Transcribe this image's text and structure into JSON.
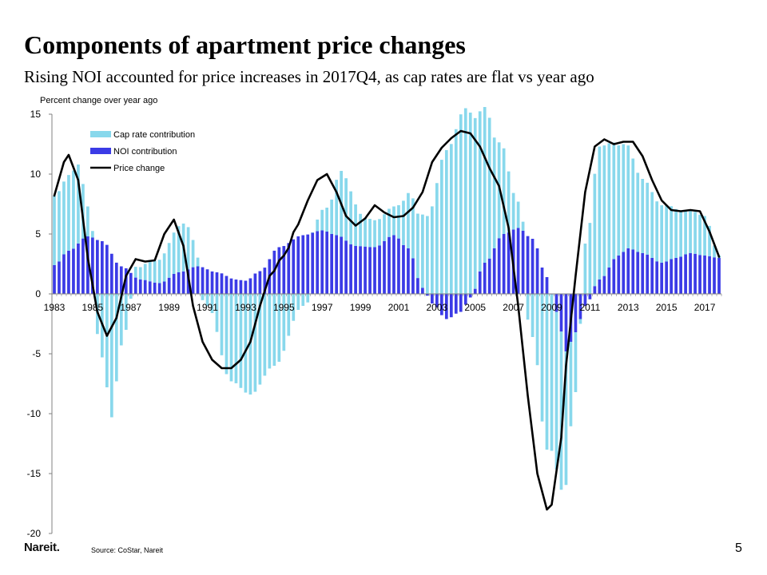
{
  "title": "Components of apartment price changes",
  "subtitle": "Rising NOI accounted for price increases in 2017Q4, as cap rates are flat vs year ago",
  "footer": {
    "logo": "Nareit.",
    "source": "Source: CoStar, Nareit",
    "page": "5"
  },
  "colors": {
    "cap_rate": "#88d8ec",
    "noi": "#3b3be6",
    "price": "#000000",
    "axis": "#808080"
  },
  "chart_data": {
    "type": "bar",
    "ylabel": "Percent change over year ago",
    "ylim": [
      -20,
      15
    ],
    "yticks": [
      15,
      10,
      5,
      0,
      -5,
      -10,
      -15,
      -20
    ],
    "xticks": [
      "1983",
      "1985",
      "1987",
      "1989",
      "1991",
      "1993",
      "1995",
      "1997",
      "1999",
      "2001",
      "2003",
      "2005",
      "2007",
      "2009",
      "2011",
      "2013",
      "2015",
      "2017"
    ],
    "frequency": "quarterly",
    "period_start": "1983Q1",
    "period_end": "2017Q4",
    "legend_position": "top-left",
    "series": [
      {
        "name": "Cap rate contribution",
        "kind": "bar-stacked",
        "anchors": [
          [
            "1983Q1",
            5.8
          ],
          [
            "1984Q2",
            6.6
          ],
          [
            "1984Q4",
            2.5
          ],
          [
            "1985Q3",
            -5.3
          ],
          [
            "1986Q1",
            -10.3
          ],
          [
            "1986Q3",
            -4.3
          ],
          [
            "1987Q2",
            0.9
          ],
          [
            "1988Q2",
            1.8
          ],
          [
            "1989Q4",
            4.0
          ],
          [
            "1991Q1",
            -1.0
          ],
          [
            "1992Q2",
            -7.3
          ],
          [
            "1993Q2",
            -8.4
          ],
          [
            "1994Q3",
            -6.0
          ],
          [
            "1996Q1",
            -1.0
          ],
          [
            "1997Q2",
            2.0
          ],
          [
            "1998Q1",
            5.5
          ],
          [
            "1999Q2",
            2.4
          ],
          [
            "2000Q1",
            2.2
          ],
          [
            "2000Q4",
            2.4
          ],
          [
            "2001Q4",
            5.0
          ],
          [
            "2002Q3",
            6.5
          ],
          [
            "2003Q3",
            12.0
          ],
          [
            "2004Q3",
            15.5
          ],
          [
            "2005Q3",
            13.0
          ],
          [
            "2006Q2",
            8.0
          ],
          [
            "2007Q2",
            2.2
          ],
          [
            "2008Q1",
            -3.6
          ],
          [
            "2008Q4",
            -13.0
          ],
          [
            "2009Q3",
            -13.2
          ],
          [
            "2010Q2",
            -5.0
          ],
          [
            "2010Q4",
            4.2
          ],
          [
            "2011Q3",
            11.1
          ],
          [
            "2012Q4",
            9.0
          ],
          [
            "2013Q4",
            6.2
          ],
          [
            "2014Q4",
            4.8
          ],
          [
            "2016Q1",
            3.7
          ],
          [
            "2017Q1",
            3.3
          ],
          [
            "2017Q4",
            0.2
          ]
        ]
      },
      {
        "name": "NOI contribution",
        "kind": "bar-stacked",
        "anchors": [
          [
            "1983Q1",
            2.4
          ],
          [
            "1983Q4",
            3.6
          ],
          [
            "1984Q4",
            4.8
          ],
          [
            "1985Q3",
            4.4
          ],
          [
            "1986Q3",
            2.3
          ],
          [
            "1987Q3",
            1.2
          ],
          [
            "1988Q3",
            0.9
          ],
          [
            "1989Q3",
            1.8
          ],
          [
            "1990Q3",
            2.3
          ],
          [
            "1991Q3",
            1.8
          ],
          [
            "1992Q3",
            1.2
          ],
          [
            "1993Q1",
            1.1
          ],
          [
            "1993Q4",
            1.9
          ],
          [
            "1994Q4",
            3.9
          ],
          [
            "1996Q1",
            4.9
          ],
          [
            "1997Q1",
            5.3
          ],
          [
            "1997Q4",
            4.9
          ],
          [
            "1998Q4",
            4.0
          ],
          [
            "1999Q4",
            3.9
          ],
          [
            "2000Q4",
            4.9
          ],
          [
            "2001Q3",
            3.8
          ],
          [
            "2002Q2",
            0.5
          ],
          [
            "2002Q4",
            -0.8
          ],
          [
            "2003Q3",
            -2.1
          ],
          [
            "2004Q2",
            -1.5
          ],
          [
            "2004Q4",
            -0.3
          ],
          [
            "2005Q3",
            2.6
          ],
          [
            "2006Q3",
            5.0
          ],
          [
            "2007Q2",
            5.5
          ],
          [
            "2008Q1",
            4.6
          ],
          [
            "2008Q4",
            1.4
          ],
          [
            "2009Q2",
            -1.5
          ],
          [
            "2009Q4",
            -4.8
          ],
          [
            "2010Q2",
            -3.2
          ],
          [
            "2010Q4",
            -1.0
          ],
          [
            "2011Q3",
            1.2
          ],
          [
            "2012Q3",
            3.2
          ],
          [
            "2013Q1",
            3.8
          ],
          [
            "2013Q4",
            3.4
          ],
          [
            "2014Q4",
            2.6
          ],
          [
            "2015Q3",
            3.0
          ],
          [
            "2016Q2",
            3.4
          ],
          [
            "2017Q1",
            3.2
          ],
          [
            "2017Q4",
            3.0
          ]
        ]
      },
      {
        "name": "Price change",
        "kind": "line",
        "anchors": [
          [
            "1983Q1",
            8.2
          ],
          [
            "1983Q3",
            11.0
          ],
          [
            "1983Q4",
            11.6
          ],
          [
            "1984Q2",
            9.5
          ],
          [
            "1984Q4",
            3.0
          ],
          [
            "1985Q2",
            -1.5
          ],
          [
            "1985Q4",
            -3.5
          ],
          [
            "1986Q2",
            -2.0
          ],
          [
            "1986Q4",
            1.5
          ],
          [
            "1987Q2",
            2.9
          ],
          [
            "1987Q4",
            2.7
          ],
          [
            "1988Q2",
            2.8
          ],
          [
            "1988Q4",
            5.0
          ],
          [
            "1989Q2",
            6.2
          ],
          [
            "1989Q4",
            4.0
          ],
          [
            "1990Q2",
            -1.0
          ],
          [
            "1990Q4",
            -4.0
          ],
          [
            "1991Q2",
            -5.5
          ],
          [
            "1991Q4",
            -6.2
          ],
          [
            "1992Q2",
            -6.2
          ],
          [
            "1992Q4",
            -5.5
          ],
          [
            "1993Q2",
            -4.0
          ],
          [
            "1993Q4",
            -1.0
          ],
          [
            "1994Q2",
            1.5
          ],
          [
            "1995Q1",
            3.2
          ],
          [
            "1995Q4",
            5.8
          ],
          [
            "1996Q2",
            7.8
          ],
          [
            "1996Q4",
            9.5
          ],
          [
            "1997Q2",
            10.0
          ],
          [
            "1997Q4",
            8.5
          ],
          [
            "1998Q2",
            6.5
          ],
          [
            "1998Q4",
            5.7
          ],
          [
            "1999Q2",
            6.3
          ],
          [
            "1999Q4",
            7.4
          ],
          [
            "2000Q2",
            6.8
          ],
          [
            "2000Q4",
            6.4
          ],
          [
            "2001Q2",
            6.5
          ],
          [
            "2001Q4",
            7.2
          ],
          [
            "2002Q2",
            8.5
          ],
          [
            "2002Q4",
            11.0
          ],
          [
            "2003Q2",
            12.2
          ],
          [
            "2003Q4",
            13.0
          ],
          [
            "2004Q2",
            13.6
          ],
          [
            "2004Q4",
            13.4
          ],
          [
            "2005Q2",
            12.3
          ],
          [
            "2005Q4",
            10.5
          ],
          [
            "2006Q2",
            9.0
          ],
          [
            "2006Q4",
            5.5
          ],
          [
            "2007Q2",
            -1.0
          ],
          [
            "2007Q4",
            -8.5
          ],
          [
            "2008Q2",
            -15.0
          ],
          [
            "2008Q4",
            -18.0
          ],
          [
            "2009Q1",
            -17.6
          ],
          [
            "2009Q3",
            -12.0
          ],
          [
            "2009Q4",
            -6.0
          ],
          [
            "2010Q2",
            1.5
          ],
          [
            "2010Q4",
            8.5
          ],
          [
            "2011Q2",
            12.3
          ],
          [
            "2011Q4",
            12.9
          ],
          [
            "2012Q2",
            12.5
          ],
          [
            "2012Q4",
            12.7
          ],
          [
            "2013Q2",
            12.7
          ],
          [
            "2013Q4",
            11.5
          ],
          [
            "2014Q2",
            9.5
          ],
          [
            "2014Q4",
            7.8
          ],
          [
            "2015Q2",
            7.0
          ],
          [
            "2015Q4",
            6.9
          ],
          [
            "2016Q2",
            7.0
          ],
          [
            "2016Q4",
            6.9
          ],
          [
            "2017Q2",
            5.2
          ],
          [
            "2017Q4",
            3.1
          ]
        ]
      }
    ]
  }
}
